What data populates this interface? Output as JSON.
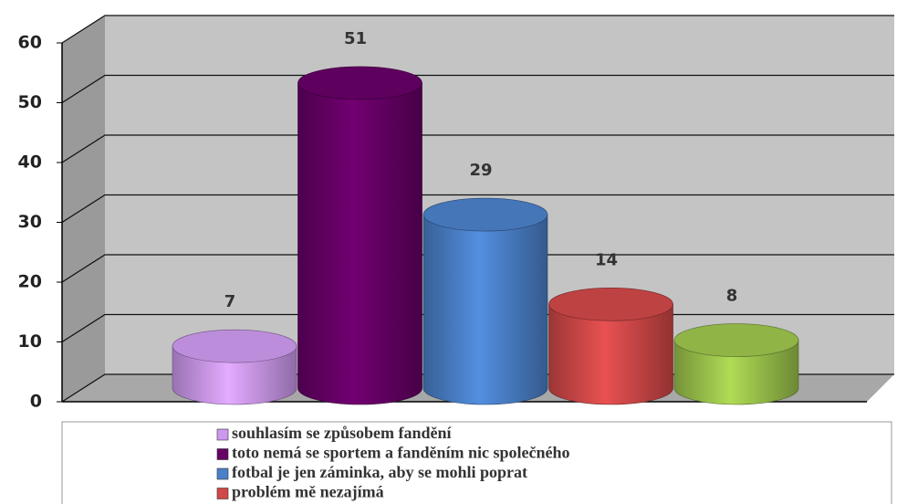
{
  "chart_data": {
    "type": "cylinder",
    "categories": [
      "souhlasím se způsobem fandění",
      "toto nemá se sportem a fanděním nic společného",
      "fotbal je jen záminka, aby se mohli poprat",
      "problém mě nezajímá",
      null
    ],
    "values": [
      7,
      51,
      29,
      14,
      8
    ],
    "colors": [
      "#cc99ee",
      "#660066",
      "#4a80c8",
      "#d04848",
      "#9cc44c"
    ],
    "ylim": [
      0,
      60
    ],
    "yticks": [
      0,
      10,
      20,
      30,
      40,
      50,
      60
    ],
    "grid": true
  }
}
